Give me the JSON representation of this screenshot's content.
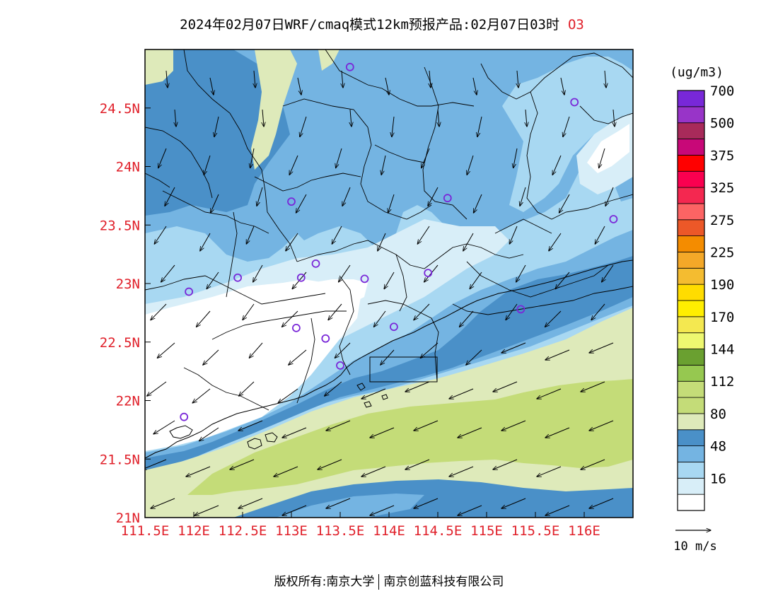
{
  "header": {
    "title": "2024年02月07日WRF/cmaq模式12km预报产品:02月07日03时",
    "species": "O3"
  },
  "map": {
    "lon_range": [
      111.5,
      116.5
    ],
    "lat_range": [
      21.0,
      25.0
    ],
    "lon_ticks": [
      {
        "value": 111.5,
        "label": "111.5E"
      },
      {
        "value": 112.0,
        "label": "112E"
      },
      {
        "value": 112.5,
        "label": "112.5E"
      },
      {
        "value": 113.0,
        "label": "113E"
      },
      {
        "value": 113.5,
        "label": "113.5E"
      },
      {
        "value": 114.0,
        "label": "114E"
      },
      {
        "value": 114.5,
        "label": "114.5E"
      },
      {
        "value": 115.0,
        "label": "115E"
      },
      {
        "value": 115.5,
        "label": "115.5E"
      },
      {
        "value": 116.0,
        "label": "116E"
      }
    ],
    "lat_ticks": [
      {
        "value": 21.0,
        "label": "21N"
      },
      {
        "value": 21.5,
        "label": "21.5N"
      },
      {
        "value": 22.0,
        "label": "22N"
      },
      {
        "value": 22.5,
        "label": "22.5N"
      },
      {
        "value": 23.0,
        "label": "23N"
      },
      {
        "value": 23.5,
        "label": "23.5N"
      },
      {
        "value": 24.0,
        "label": "24N"
      },
      {
        "value": 24.5,
        "label": "24.5N"
      }
    ],
    "stations": [
      [
        113.6,
        24.85
      ],
      [
        115.9,
        24.55
      ],
      [
        113.0,
        23.7
      ],
      [
        114.6,
        23.73
      ],
      [
        116.3,
        23.55
      ],
      [
        111.95,
        22.93
      ],
      [
        112.45,
        23.05
      ],
      [
        113.1,
        23.05
      ],
      [
        113.25,
        23.17
      ],
      [
        113.75,
        23.04
      ],
      [
        114.4,
        23.09
      ],
      [
        113.05,
        22.62
      ],
      [
        113.35,
        22.53
      ],
      [
        114.05,
        22.63
      ],
      [
        113.5,
        22.3
      ],
      [
        115.35,
        22.78
      ],
      [
        111.9,
        21.86
      ]
    ],
    "bay_box": {
      "lon": [
        113.75,
        114.45
      ],
      "lat": [
        22.15,
        22.45
      ]
    }
  },
  "legend": {
    "unit": "(ug/m3)",
    "levels": [
      {
        "label": "",
        "color": "#ffffff"
      },
      {
        "label": "16",
        "color": "#d8eef8"
      },
      {
        "label": "",
        "color": "#a8d8f2"
      },
      {
        "label": "48",
        "color": "#74b4e2"
      },
      {
        "label": "",
        "color": "#4a90c8"
      },
      {
        "label": "80",
        "color": "#deeaba"
      },
      {
        "label": "",
        "color": "#c4dc78"
      },
      {
        "label": "112",
        "color": "#c4dc78"
      },
      {
        "label": "",
        "color": "#96c850"
      },
      {
        "label": "144",
        "color": "#6aa030"
      },
      {
        "label": "",
        "color": "#eef870"
      },
      {
        "label": "170",
        "color": "#f4e850"
      },
      {
        "label": "",
        "color": "#ffee00"
      },
      {
        "label": "190",
        "color": "#ffdc00"
      },
      {
        "label": "",
        "color": "#f4bc30"
      },
      {
        "label": "225",
        "color": "#f4a828"
      },
      {
        "label": "",
        "color": "#f48c00"
      },
      {
        "label": "275",
        "color": "#ec5828"
      },
      {
        "label": "",
        "color": "#fc6464"
      },
      {
        "label": "325",
        "color": "#f42850"
      },
      {
        "label": "",
        "color": "#fa0050"
      },
      {
        "label": "375",
        "color": "#ff0000"
      },
      {
        "label": "",
        "color": "#c80878"
      },
      {
        "label": "500",
        "color": "#a82a5a"
      },
      {
        "label": "",
        "color": "#9834c8"
      },
      {
        "label": "700",
        "color": "#7828d8"
      }
    ],
    "wind_reference": "10 m/s"
  },
  "footer": {
    "copyright": "版权所有:南京大学",
    "partner": "南京创蓝科技有限公司"
  }
}
